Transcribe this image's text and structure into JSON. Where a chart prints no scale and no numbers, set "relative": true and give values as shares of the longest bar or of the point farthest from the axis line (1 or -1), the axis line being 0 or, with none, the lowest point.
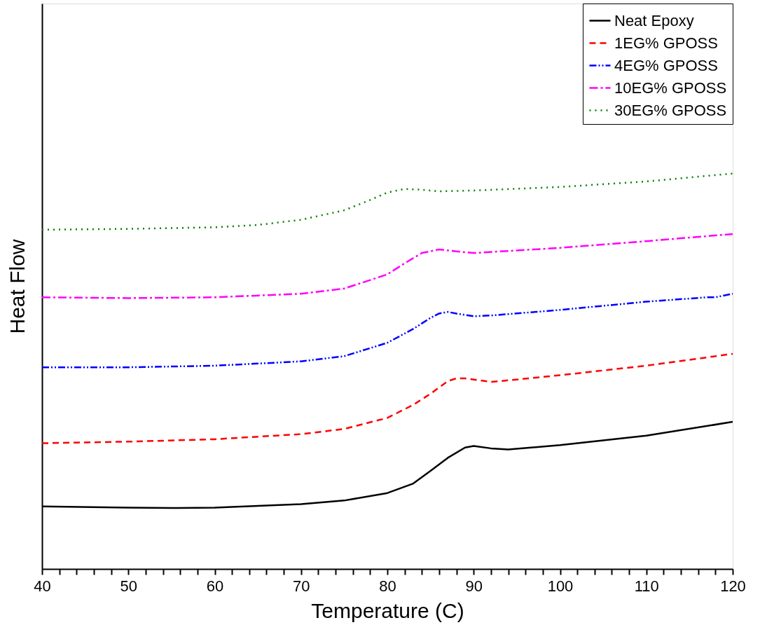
{
  "chart_data": {
    "type": "line",
    "relative": true,
    "xlabel": "Temperature (C)",
    "ylabel": "Heat Flow",
    "xlim": [
      40,
      120
    ],
    "xticks": [
      40,
      {
        "value": 42,
        "label": null
      },
      {
        "value": 44,
        "label": null
      },
      {
        "value": 46,
        "label": null
      },
      {
        "value": 48,
        "label": null
      },
      50,
      {
        "value": 52,
        "label": null
      },
      {
        "value": 54,
        "label": null
      },
      {
        "value": 56,
        "label": null
      },
      {
        "value": 58,
        "label": null
      },
      60,
      {
        "value": 62,
        "label": null
      },
      {
        "value": 64,
        "label": null
      },
      {
        "value": 66,
        "label": null
      },
      {
        "value": 68,
        "label": null
      },
      70,
      {
        "value": 72,
        "label": null
      },
      {
        "value": 74,
        "label": null
      },
      {
        "value": 76,
        "label": null
      },
      {
        "value": 78,
        "label": null
      },
      80,
      {
        "value": 82,
        "label": null
      },
      {
        "value": 84,
        "label": null
      },
      {
        "value": 86,
        "label": null
      },
      {
        "value": 88,
        "label": null
      },
      90,
      {
        "value": 92,
        "label": null
      },
      {
        "value": 94,
        "label": null
      },
      {
        "value": 96,
        "label": null
      },
      {
        "value": 98,
        "label": null
      },
      100,
      {
        "value": 102,
        "label": null
      },
      {
        "value": 104,
        "label": null
      },
      {
        "value": 106,
        "label": null
      },
      {
        "value": 108,
        "label": null
      },
      110,
      {
        "value": 112,
        "label": null
      },
      {
        "value": 114,
        "label": null
      },
      {
        "value": 116,
        "label": null
      },
      {
        "value": 118,
        "label": null
      },
      120
    ],
    "legend": "top right",
    "grid": false,
    "marker": "none",
    "series": [
      {
        "name": "Neat Epoxy",
        "color": "#000000",
        "line_style": "solid",
        "x": [
          40,
          50,
          55,
          60,
          70,
          75,
          80,
          83,
          85,
          87,
          89,
          90,
          92,
          94,
          100,
          110,
          120
        ],
        "values": [
          0.158,
          0.155,
          0.154,
          0.155,
          0.164,
          0.173,
          0.192,
          0.216,
          0.248,
          0.281,
          0.307,
          0.311,
          0.305,
          0.302,
          0.313,
          0.337,
          0.372
        ]
      },
      {
        "name": "1EG% GPOSS",
        "color": "#ff0000",
        "line_style": "dashed",
        "x": [
          40,
          50,
          60,
          70,
          75,
          80,
          83,
          85,
          87,
          88,
          89,
          90,
          92,
          95,
          100,
          110,
          120
        ],
        "values": [
          0.318,
          0.322,
          0.328,
          0.341,
          0.354,
          0.382,
          0.415,
          0.443,
          0.475,
          0.482,
          0.482,
          0.479,
          0.473,
          0.479,
          0.49,
          0.514,
          0.544
        ]
      },
      {
        "name": "4EG% GPOSS",
        "color": "#0000ff",
        "line_style": "dashdotdot",
        "x": [
          40,
          50,
          60,
          70,
          75,
          80,
          83,
          85,
          86,
          87,
          88,
          90,
          92,
          100,
          110,
          117,
          118,
          120
        ],
        "values": [
          0.51,
          0.51,
          0.514,
          0.525,
          0.538,
          0.572,
          0.607,
          0.635,
          0.646,
          0.65,
          0.646,
          0.639,
          0.641,
          0.655,
          0.676,
          0.687,
          0.687,
          0.696
        ]
      },
      {
        "name": "10EG% GPOSS",
        "color": "#ff00ff",
        "line_style": "dashdot",
        "x": [
          40,
          50,
          60,
          70,
          75,
          80,
          82,
          84,
          86,
          88,
          90,
          100,
          110,
          120
        ],
        "values": [
          0.687,
          0.685,
          0.687,
          0.696,
          0.709,
          0.745,
          0.773,
          0.799,
          0.808,
          0.803,
          0.799,
          0.812,
          0.829,
          0.847
        ]
      },
      {
        "name": "30EG% GPOSS",
        "color": "#008000",
        "line_style": "dotted",
        "x": [
          40,
          50,
          60,
          65,
          70,
          75,
          78,
          80,
          82,
          84,
          86,
          90,
          100,
          110,
          120
        ],
        "values": [
          0.858,
          0.86,
          0.864,
          0.87,
          0.883,
          0.907,
          0.933,
          0.952,
          0.961,
          0.959,
          0.955,
          0.957,
          0.966,
          0.98,
          1.0
        ]
      }
    ]
  }
}
